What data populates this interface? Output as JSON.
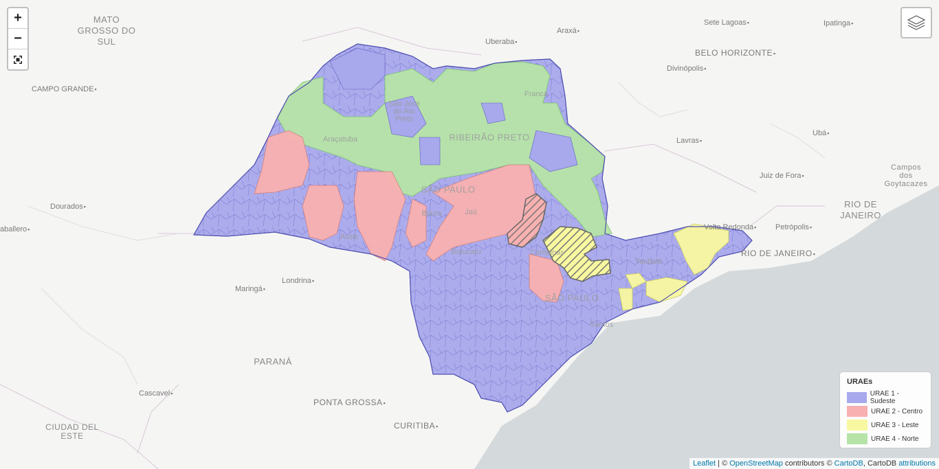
{
  "controls": {
    "zoom_in": "+",
    "zoom_out": "−",
    "fullscreen_icon": "fullscreen-icon",
    "layers_icon": "layers-icon"
  },
  "places": [
    {
      "id": "sete-lagoas",
      "label": "Sete Lagoas"
    },
    {
      "id": "ipatinga",
      "label": "Ipatinga"
    },
    {
      "id": "uberaba",
      "label": "Uberaba"
    },
    {
      "id": "araxa",
      "label": "Araxá"
    },
    {
      "id": "belo-horizonte",
      "label": "BELO HORIZONTE"
    },
    {
      "id": "divinopolis",
      "label": "Divinópolis"
    },
    {
      "id": "campo-grande",
      "label": "CAMPO GRANDE"
    },
    {
      "id": "lavras",
      "label": "Lavras"
    },
    {
      "id": "uba",
      "label": "Ubá"
    },
    {
      "id": "juiz-de-fora",
      "label": "Juiz de Fora"
    },
    {
      "id": "dourados",
      "label": "Dourados"
    },
    {
      "id": "caballero",
      "label": "aballero"
    },
    {
      "id": "volta-redonda",
      "label": "Volta Redonda"
    },
    {
      "id": "petropolis",
      "label": "Petrópolis"
    },
    {
      "id": "rio-de-janeiro",
      "label": "RIO DE JANEIRO"
    },
    {
      "id": "londrina",
      "label": "Londrina"
    },
    {
      "id": "maringa",
      "label": "Maringá"
    },
    {
      "id": "cascavel",
      "label": "Cascavel"
    },
    {
      "id": "ponta-grossa",
      "label": "PONTA GROSSA"
    },
    {
      "id": "curitiba",
      "label": "CURITIBA"
    }
  ],
  "regions": [
    {
      "id": "mato-grosso-do-sul",
      "label": "MATO\nGROSSO DO\nSUL"
    },
    {
      "id": "rio-de-janeiro-state",
      "label": "RIO DE\nJANEIRO"
    },
    {
      "id": "campos",
      "label": "Campos dos\nGoytacazes"
    },
    {
      "id": "parana",
      "label": "PARANÁ"
    },
    {
      "id": "ciudad-del-este",
      "label": "CIUDAD DEL\nESTE"
    }
  ],
  "overlay_labels": [
    {
      "id": "franca",
      "label": "Franca"
    },
    {
      "id": "sao-jose-rio-preto",
      "label": "São José do Rio Preto"
    },
    {
      "id": "aracatuba",
      "label": "Araçatuba"
    },
    {
      "id": "ribeirao-preto",
      "label": "RIBEIRÃO PRETO"
    },
    {
      "id": "sao-paulo-state",
      "label": "SÃO PAULO"
    },
    {
      "id": "bauru",
      "label": "Bauru"
    },
    {
      "id": "jau",
      "label": "Jaú"
    },
    {
      "id": "assis",
      "label": "Assis"
    },
    {
      "id": "botucatu",
      "label": "Botucatu"
    },
    {
      "id": "campinas",
      "label": "Campinas"
    },
    {
      "id": "taubate",
      "label": "Taubaté"
    },
    {
      "id": "sao-paulo-city",
      "label": "SÃO PAULO"
    },
    {
      "id": "santos",
      "label": "Santos"
    }
  ],
  "legend": {
    "title": "URAEs",
    "items": [
      {
        "label": "URAE 1 - Sudeste",
        "color": "#a8a8ec"
      },
      {
        "label": "URAE 2 - Centro",
        "color": "#f8b0b0"
      },
      {
        "label": "URAE 3 - Leste",
        "color": "#f8f8a0"
      },
      {
        "label": "URAE 4 - Norte",
        "color": "#b6e4a8"
      }
    ]
  },
  "attribution": {
    "leaflet": "Leaflet",
    "sep1": " | © ",
    "osm": "OpenStreetMap",
    "mid": " contributors © ",
    "cartodb": "CartoDB",
    "mid2": ", CartoDB ",
    "attributions": "attributions"
  },
  "colors": {
    "sudeste": "#a8a8ec",
    "centro": "#f8b0b0",
    "leste": "#f8f8a0",
    "norte": "#b6e4a8",
    "ocean": "#d4d9dc",
    "land": "#f5f5f3"
  }
}
